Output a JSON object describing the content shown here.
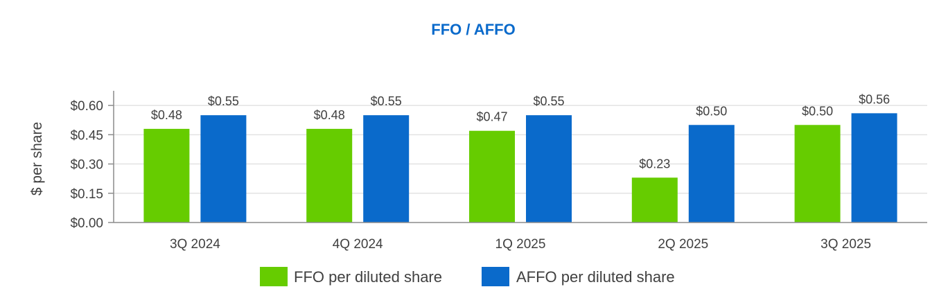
{
  "chart_data": {
    "type": "bar",
    "title": "FFO / AFFO",
    "title_color": "#0A6ACB",
    "xlabel": "",
    "ylabel": "$ per share",
    "ylim": [
      0,
      0.675
    ],
    "yticks": [
      "$0.00",
      "$0.15",
      "$0.30",
      "$0.45",
      "$0.60"
    ],
    "ytick_values": [
      0,
      0.15,
      0.3,
      0.45,
      0.6
    ],
    "grid": true,
    "legend_position": "bottom",
    "categories": [
      "3Q 2024",
      "4Q 2024",
      "1Q 2025",
      "2Q 2025",
      "3Q 2025"
    ],
    "series": [
      {
        "name": "FFO per diluted share",
        "color": "#66CC00",
        "values": [
          0.48,
          0.48,
          0.47,
          0.23,
          0.5
        ],
        "labels": [
          "$0.48",
          "$0.48",
          "$0.47",
          "$0.23",
          "$0.50"
        ]
      },
      {
        "name": "AFFO per diluted share",
        "color": "#0A6ACB",
        "values": [
          0.55,
          0.55,
          0.55,
          0.5,
          0.56
        ],
        "labels": [
          "$0.55",
          "$0.55",
          "$0.55",
          "$0.50",
          "$0.56"
        ]
      }
    ]
  }
}
